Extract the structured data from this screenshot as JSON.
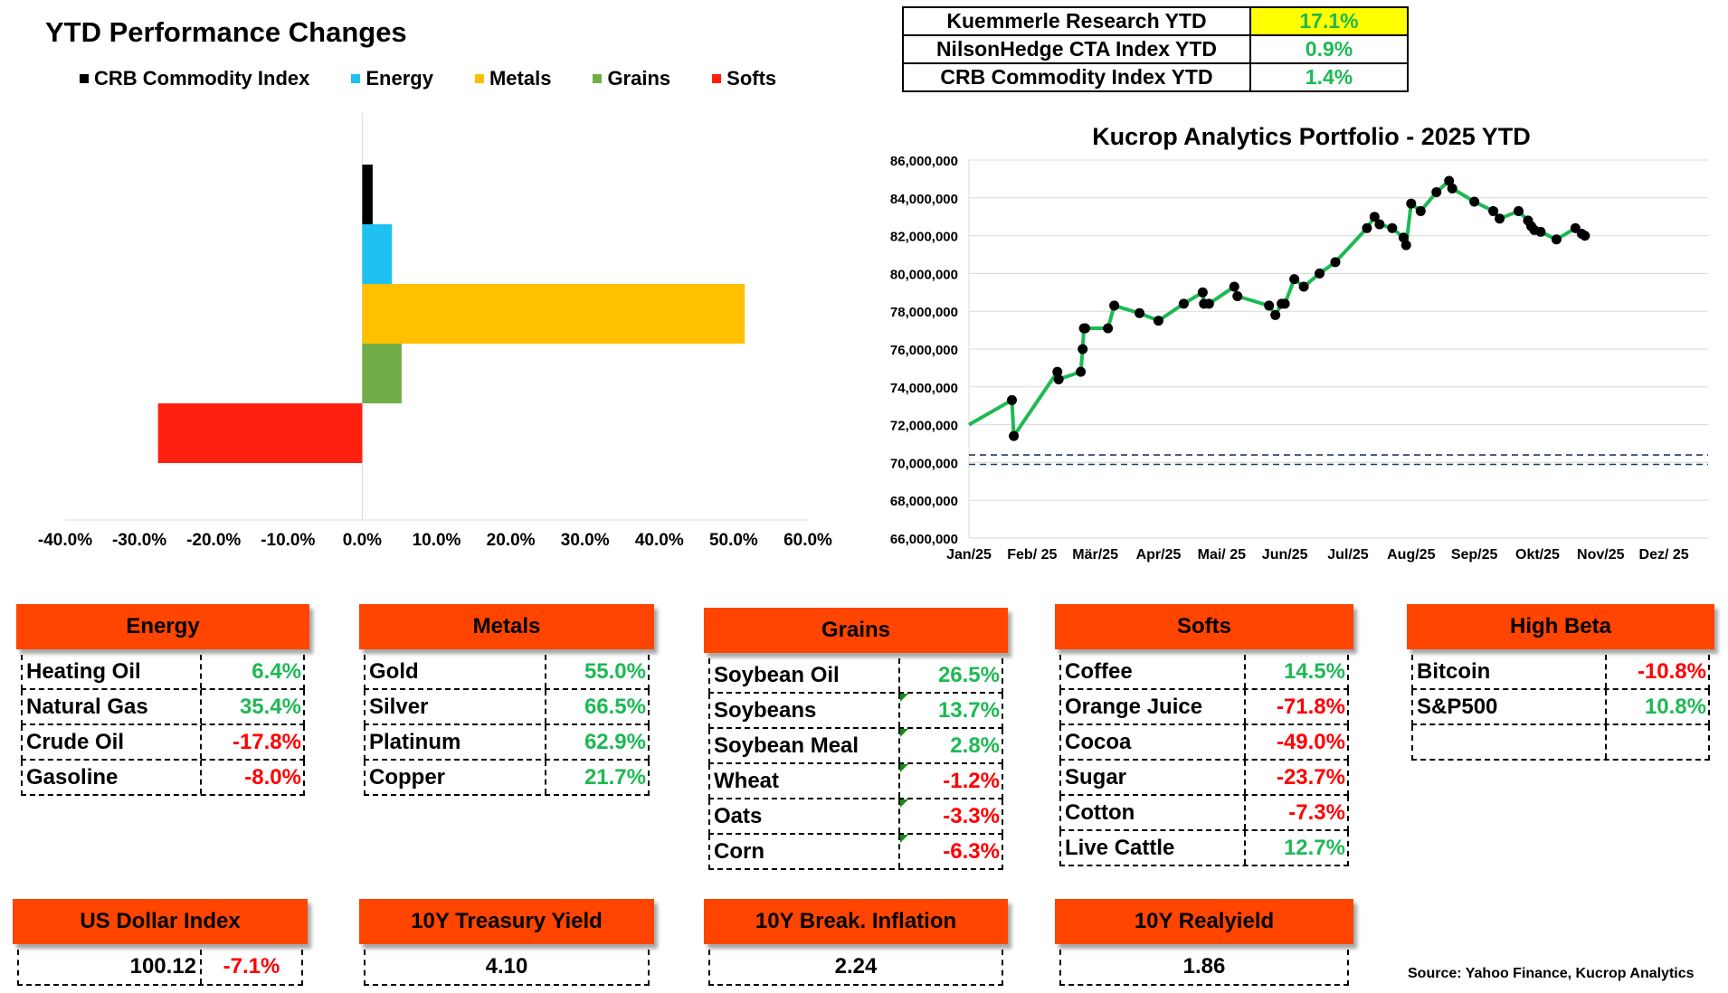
{
  "title": "YTD Performance Changes",
  "legend": [
    {
      "label": "CRB Commodity Index",
      "color": "#000000"
    },
    {
      "label": "Energy",
      "color": "#1ec1ef"
    },
    {
      "label": "Metals",
      "color": "#ffc000"
    },
    {
      "label": "Grains",
      "color": "#70ad47"
    },
    {
      "label": "Softs",
      "color": "#ff2010"
    }
  ],
  "summary": [
    {
      "label": "Kuemmerle Research YTD",
      "value": "17.1%"
    },
    {
      "label": "NilsonHedge CTA Index YTD",
      "value": "0.9%"
    },
    {
      "label": "CRB Commodity Index YTD",
      "value": "1.4%"
    }
  ],
  "chart_data": [
    {
      "type": "bar",
      "orientation": "horizontal",
      "title": "YTD Performance Changes",
      "categories": [
        "CRB Commodity Index",
        "Energy",
        "Metals",
        "Grains",
        "Softs"
      ],
      "values": [
        1.4,
        4.0,
        51.5,
        5.3,
        -27.5
      ],
      "colors": [
        "#000000",
        "#1ec1ef",
        "#ffc000",
        "#70ad47",
        "#ff2010"
      ],
      "xlim": [
        -40,
        60
      ],
      "xticks": [
        "-40.0%",
        "-30.0%",
        "-20.0%",
        "-10.0%",
        "0.0%",
        "10.0%",
        "20.0%",
        "30.0%",
        "40.0%",
        "50.0%",
        "60.0%"
      ],
      "tick_values": [
        -40,
        -30,
        -20,
        -10,
        0,
        10,
        20,
        30,
        40,
        50,
        60
      ],
      "legend": "top"
    },
    {
      "type": "line",
      "title": "Kucrop Analytics Portfolio - 2025 YTD",
      "ylim": [
        66000000,
        86000000
      ],
      "yticks": [
        "66,000,000",
        "68,000,000",
        "70,000,000",
        "72,000,000",
        "74,000,000",
        "76,000,000",
        "78,000,000",
        "80,000,000",
        "82,000,000",
        "84,000,000",
        "86,000,000"
      ],
      "ytick_values": [
        66000000,
        68000000,
        70000000,
        72000000,
        74000000,
        76000000,
        78000000,
        80000000,
        82000000,
        84000000,
        86000000
      ],
      "xlim": [
        0,
        11.7
      ],
      "xticks": [
        "Jan/25",
        "Feb/ 25",
        "Mär/25",
        "Apr/25",
        "Mai/ 25",
        "Jun/25",
        "Jul/25",
        "Aug/25",
        "Sep/25",
        "Okt/25",
        "Nov/25",
        "Dez/ 25"
      ],
      "reference_lines": [
        70400000,
        69900000
      ],
      "x": [
        0.0,
        0.68,
        0.71,
        1.4,
        1.42,
        1.77,
        1.8,
        1.82,
        1.84,
        2.2,
        2.3,
        2.7,
        3.0,
        3.4,
        3.7,
        3.72,
        3.8,
        4.2,
        4.25,
        4.75,
        4.85,
        4.95,
        5.0,
        5.15,
        5.3,
        5.55,
        5.8,
        6.3,
        6.42,
        6.5,
        6.7,
        6.88,
        6.92,
        7.0,
        7.15,
        7.4,
        7.6,
        7.65,
        8.0,
        8.3,
        8.4,
        8.7,
        8.85,
        8.9,
        8.95,
        9.05,
        9.3,
        9.6,
        9.7,
        9.75
      ],
      "y": [
        72000000,
        73300000,
        71400000,
        74800000,
        74400000,
        74800000,
        76000000,
        77100000,
        77100000,
        77100000,
        78300000,
        77900000,
        77500000,
        78400000,
        79000000,
        78400000,
        78400000,
        79300000,
        78800000,
        78300000,
        77800000,
        78400000,
        78400000,
        79700000,
        79300000,
        80000000,
        80600000,
        82400000,
        83000000,
        82600000,
        82400000,
        81900000,
        81500000,
        83700000,
        83300000,
        84300000,
        84900000,
        84500000,
        83800000,
        83300000,
        82900000,
        83300000,
        82800000,
        82500000,
        82300000,
        82200000,
        81800000,
        82400000,
        82100000,
        82000000
      ]
    }
  ],
  "categories": {
    "energy": {
      "title": "Energy",
      "rows": [
        {
          "name": "Heating Oil",
          "value": "6.4%"
        },
        {
          "name": "Natural Gas",
          "value": "35.4%"
        },
        {
          "name": "Crude Oil",
          "value": "-17.8%"
        },
        {
          "name": "Gasoline",
          "value": "-8.0%"
        }
      ]
    },
    "metals": {
      "title": "Metals",
      "rows": [
        {
          "name": "Gold",
          "value": "55.0%"
        },
        {
          "name": "Silver",
          "value": "66.5%"
        },
        {
          "name": "Platinum",
          "value": "62.9%"
        },
        {
          "name": "Copper",
          "value": "21.7%"
        }
      ]
    },
    "grains": {
      "title": "Grains",
      "rows": [
        {
          "name": "Soybean Oil",
          "value": "26.5%"
        },
        {
          "name": "Soybeans",
          "value": "13.7%"
        },
        {
          "name": "Soybean Meal",
          "value": "2.8%"
        },
        {
          "name": "Wheat",
          "value": "-1.2%"
        },
        {
          "name": "Oats",
          "value": "-3.3%"
        },
        {
          "name": "Corn",
          "value": "-6.3%"
        }
      ]
    },
    "softs": {
      "title": "Softs",
      "rows": [
        {
          "name": "Coffee",
          "value": "14.5%"
        },
        {
          "name": "Orange Juice",
          "value": "-71.8%"
        },
        {
          "name": "Cocoa",
          "value": "-49.0%"
        },
        {
          "name": "Sugar",
          "value": "-23.7%"
        },
        {
          "name": "Cotton",
          "value": "-7.3%"
        },
        {
          "name": "Live Cattle",
          "value": "12.7%"
        }
      ]
    },
    "highbeta": {
      "title": "High Beta",
      "rows": [
        {
          "name": "Bitcoin",
          "value": "-10.8%"
        },
        {
          "name": "S&P500",
          "value": "10.8%"
        },
        {
          "name": "",
          "value": ""
        }
      ]
    }
  },
  "indicators": {
    "usd": {
      "title": "US Dollar Index",
      "value": "100.12",
      "change": "-7.1%"
    },
    "treasury": {
      "title": "10Y Treasury Yield",
      "value": "4.10"
    },
    "breakeven": {
      "title": "10Y Break. Inflation",
      "value": "2.24"
    },
    "realyield": {
      "title": "10Y Realyield",
      "value": "1.86"
    }
  },
  "source": "Source: Yahoo Finance, Kucrop Analytics"
}
